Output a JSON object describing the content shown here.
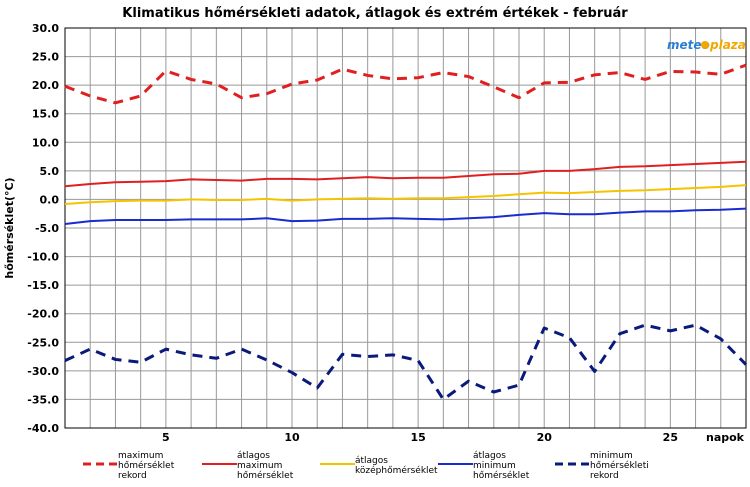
{
  "chart_data": {
    "type": "line",
    "title": "Klimatikus hőmérsékleti adatok, átlagok és extrém értékek - február",
    "xlabel": "napok",
    "ylabel": "hőmérséklet(°C)",
    "xlim": [
      1,
      28
    ],
    "ylim": [
      -40,
      30
    ],
    "yticks": [
      "30.0",
      "25.0",
      "20.0",
      "15.0",
      "10.0",
      "5.0",
      "0.0",
      "-5.0",
      "-10.0",
      "-15.0",
      "-20.0",
      "-25.0",
      "-30.0",
      "-35.0",
      "-40.0"
    ],
    "xticks": [
      "5",
      "10",
      "15",
      "20",
      "25"
    ],
    "x": [
      1,
      2,
      3,
      4,
      5,
      6,
      7,
      8,
      9,
      10,
      11,
      12,
      13,
      14,
      15,
      16,
      17,
      18,
      19,
      20,
      21,
      22,
      23,
      24,
      25,
      26,
      27,
      28
    ],
    "series": [
      {
        "name": "maximum hőmérséklet rekord",
        "legend": [
          "maximum",
          "hőmérséklet",
          "rekord"
        ],
        "color": "#e02020",
        "dash": true,
        "values": [
          19.8,
          18.1,
          16.9,
          18.1,
          22.5,
          21.0,
          20.2,
          17.8,
          18.5,
          20.2,
          20.9,
          22.8,
          21.7,
          21.1,
          21.3,
          22.2,
          21.5,
          19.7,
          17.8,
          20.4,
          20.5,
          21.8,
          22.2,
          21.0,
          22.4,
          22.3,
          21.9,
          23.5
        ]
      },
      {
        "name": "átlagos maximum hőmérséklet",
        "legend": [
          "átlagos",
          "maximum",
          "hőmérséklet"
        ],
        "color": "#e02020",
        "dash": false,
        "values": [
          2.3,
          2.7,
          3.0,
          3.1,
          3.2,
          3.5,
          3.4,
          3.3,
          3.6,
          3.6,
          3.5,
          3.7,
          3.9,
          3.7,
          3.8,
          3.8,
          4.1,
          4.4,
          4.5,
          5.0,
          5.0,
          5.3,
          5.7,
          5.8,
          6.0,
          6.2,
          6.4,
          6.6
        ]
      },
      {
        "name": "átlagos középhőmérséklet",
        "legend": [
          "átlagos",
          "középhőmérséklet"
        ],
        "color": "#f5c400",
        "dash": false,
        "values": [
          -0.8,
          -0.5,
          -0.3,
          -0.2,
          -0.2,
          0.0,
          -0.1,
          -0.1,
          0.1,
          -0.2,
          0.0,
          0.1,
          0.2,
          0.1,
          0.2,
          0.2,
          0.4,
          0.6,
          0.9,
          1.2,
          1.1,
          1.3,
          1.5,
          1.6,
          1.8,
          2.0,
          2.2,
          2.5
        ]
      },
      {
        "name": "átlagos minimum hőmérséklet",
        "legend": [
          "átlagos",
          "minimum",
          "hőmérséklet"
        ],
        "color": "#1a2bd0",
        "dash": false,
        "values": [
          -4.3,
          -3.8,
          -3.6,
          -3.6,
          -3.6,
          -3.5,
          -3.5,
          -3.5,
          -3.3,
          -3.8,
          -3.7,
          -3.4,
          -3.4,
          -3.3,
          -3.4,
          -3.5,
          -3.3,
          -3.1,
          -2.7,
          -2.4,
          -2.6,
          -2.6,
          -2.3,
          -2.1,
          -2.1,
          -1.9,
          -1.8,
          -1.6
        ]
      },
      {
        "name": "minimum hőmérsékleti rekord",
        "legend": [
          "minimum",
          "hőmérsékleti",
          "rekord"
        ],
        "color": "#0a1a7a",
        "dash": true,
        "values": [
          -28.2,
          -26.2,
          -28.0,
          -28.5,
          -26.2,
          -27.2,
          -27.8,
          -26.2,
          -28.1,
          -30.3,
          -33.0,
          -27.1,
          -27.5,
          -27.2,
          -28.2,
          -35.0,
          -31.8,
          -33.7,
          -32.5,
          -22.5,
          -24.2,
          -30.1,
          -23.5,
          -22.0,
          -23.0,
          -22.0,
          -24.4,
          -28.9
        ]
      }
    ]
  },
  "logo": {
    "part1": "meteo",
    "part2": "plaza"
  }
}
